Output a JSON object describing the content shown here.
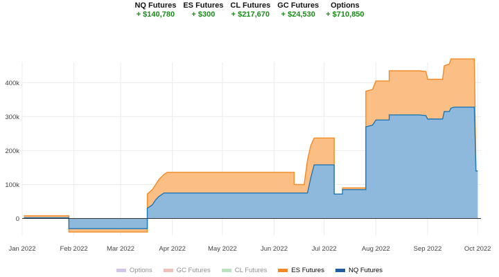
{
  "summary": [
    {
      "name": "NQ Futures",
      "value": "+ $140,780"
    },
    {
      "name": "ES Futures",
      "value": "+ $300"
    },
    {
      "name": "CL Futures",
      "value": "+ $217,670"
    },
    {
      "name": "GC Futures",
      "value": "+ $24,530"
    },
    {
      "name": "Options",
      "value": "+ $710,850"
    }
  ],
  "legend": [
    {
      "name": "Options",
      "color": "#9b7fd4",
      "faded": true
    },
    {
      "name": "GC Futures",
      "color": "#e0766e",
      "faded": true
    },
    {
      "name": "CL Futures",
      "color": "#6fbf73",
      "faded": true
    },
    {
      "name": "ES Futures",
      "color": "#f08a24",
      "faded": false
    },
    {
      "name": "NQ Futures",
      "color": "#1f5fa0",
      "faded": false
    }
  ],
  "chart_data": {
    "type": "area",
    "stacked": true,
    "title": "",
    "xlabel": "",
    "ylabel": "",
    "xlim": [
      "2022-01-01",
      "2022-10-03"
    ],
    "ylim": [
      -50000,
      460000
    ],
    "y_ticks": [
      0,
      100000,
      200000,
      300000,
      400000
    ],
    "y_tick_labels": [
      "0",
      "100k",
      "200k",
      "300k",
      "400k"
    ],
    "x_ticks": [
      "2022-01-01",
      "2022-02-01",
      "2022-03-01",
      "2022-04-01",
      "2022-05-01",
      "2022-06-01",
      "2022-07-01",
      "2022-08-01",
      "2022-09-01",
      "2022-10-01"
    ],
    "x_tick_labels": [
      "Jan 2022",
      "Feb 2022",
      "Mar 2022",
      "Apr 2022",
      "May 2022",
      "Jun 2022",
      "Jul 2022",
      "Aug 2022",
      "Sep 2022",
      "Oct 2022"
    ],
    "grid": true,
    "legend_position": "bottom",
    "series": [
      {
        "name": "NQ Futures",
        "color": "#1f77b4",
        "fill": "#8fb9dc",
        "points": [
          [
            "2022-01-02",
            2000
          ],
          [
            "2022-01-29",
            2000
          ],
          [
            "2022-01-29",
            -30000
          ],
          [
            "2022-03-17",
            -30000
          ],
          [
            "2022-03-17",
            30000
          ],
          [
            "2022-03-20",
            40000
          ],
          [
            "2022-03-22",
            55000
          ],
          [
            "2022-03-24",
            65000
          ],
          [
            "2022-03-27",
            75000
          ],
          [
            "2022-06-13",
            75000
          ],
          [
            "2022-06-21",
            75000
          ],
          [
            "2022-06-23",
            120000
          ],
          [
            "2022-06-25",
            158000
          ],
          [
            "2022-07-07",
            158000
          ],
          [
            "2022-07-07",
            72000
          ],
          [
            "2022-07-12",
            72000
          ],
          [
            "2022-07-12",
            85000
          ],
          [
            "2022-07-26",
            85000
          ],
          [
            "2022-07-26",
            270000
          ],
          [
            "2022-07-30",
            275000
          ],
          [
            "2022-08-01",
            290000
          ],
          [
            "2022-08-09",
            290000
          ],
          [
            "2022-08-09",
            305000
          ],
          [
            "2022-08-27",
            305000
          ],
          [
            "2022-08-31",
            303000
          ],
          [
            "2022-09-01",
            293000
          ],
          [
            "2022-09-10",
            293000
          ],
          [
            "2022-09-11",
            315000
          ],
          [
            "2022-09-14",
            315000
          ],
          [
            "2022-09-15",
            325000
          ],
          [
            "2022-09-17",
            328000
          ],
          [
            "2022-09-29",
            328000
          ],
          [
            "2022-09-30",
            140000
          ],
          [
            "2022-10-01",
            140000
          ]
        ]
      },
      {
        "name": "ES Futures",
        "color": "#f08a24",
        "fill": "#fbbf86",
        "points": [
          [
            "2022-01-02",
            8000
          ],
          [
            "2022-01-29",
            8000
          ],
          [
            "2022-01-29",
            -40000
          ],
          [
            "2022-03-17",
            -40000
          ],
          [
            "2022-03-17",
            72000
          ],
          [
            "2022-03-20",
            85000
          ],
          [
            "2022-03-22",
            100000
          ],
          [
            "2022-03-24",
            115000
          ],
          [
            "2022-03-27",
            130000
          ],
          [
            "2022-03-29",
            136000
          ],
          [
            "2022-06-13",
            136000
          ],
          [
            "2022-06-13",
            100000
          ],
          [
            "2022-06-19",
            100000
          ],
          [
            "2022-06-21",
            172000
          ],
          [
            "2022-06-23",
            215000
          ],
          [
            "2022-06-25",
            237000
          ],
          [
            "2022-07-07",
            237000
          ],
          [
            "2022-07-07",
            60000
          ],
          [
            "2022-07-12",
            60000
          ],
          [
            "2022-07-12",
            90000
          ],
          [
            "2022-07-26",
            90000
          ],
          [
            "2022-07-26",
            375000
          ],
          [
            "2022-07-30",
            380000
          ],
          [
            "2022-08-01",
            405000
          ],
          [
            "2022-08-09",
            405000
          ],
          [
            "2022-08-09",
            435000
          ],
          [
            "2022-08-27",
            435000
          ],
          [
            "2022-08-31",
            433000
          ],
          [
            "2022-09-01",
            410000
          ],
          [
            "2022-09-10",
            410000
          ],
          [
            "2022-09-11",
            450000
          ],
          [
            "2022-09-14",
            455000
          ],
          [
            "2022-09-15",
            470000
          ],
          [
            "2022-09-29",
            470000
          ],
          [
            "2022-09-30",
            140000
          ],
          [
            "2022-10-01",
            140000
          ]
        ]
      }
    ]
  }
}
